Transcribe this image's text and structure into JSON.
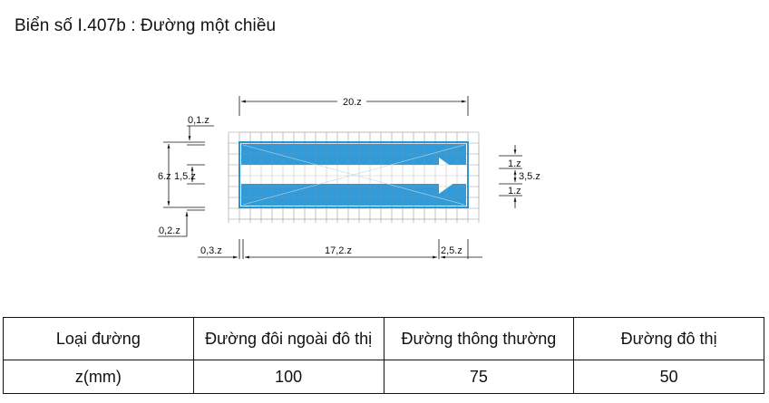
{
  "title": "Biển số I.407b : Đường một chiều",
  "colors": {
    "sign_blue": "#1f93d6",
    "grid": "#9a9a9a",
    "arrow": "#ffffff",
    "line": "#111111"
  },
  "dimensions": {
    "total_width": "20.z",
    "border_top": "0,1.z",
    "height": "6.z",
    "stripe": "1,5.z",
    "border_bottom": "0,2.z",
    "right_band_top": "1.z",
    "right_center": "3,5.z",
    "right_band_bottom": "1.z",
    "left_margin": "0,3.z",
    "bar_length": "17,2.z",
    "arrow_length": "2,5.z"
  },
  "table": {
    "headers": [
      "Loại đường",
      "Đường đôi ngoài đô thị",
      "Đường thông thường",
      "Đường đô thị"
    ],
    "rows": [
      [
        "z(mm)",
        "100",
        "75",
        "50"
      ]
    ]
  }
}
